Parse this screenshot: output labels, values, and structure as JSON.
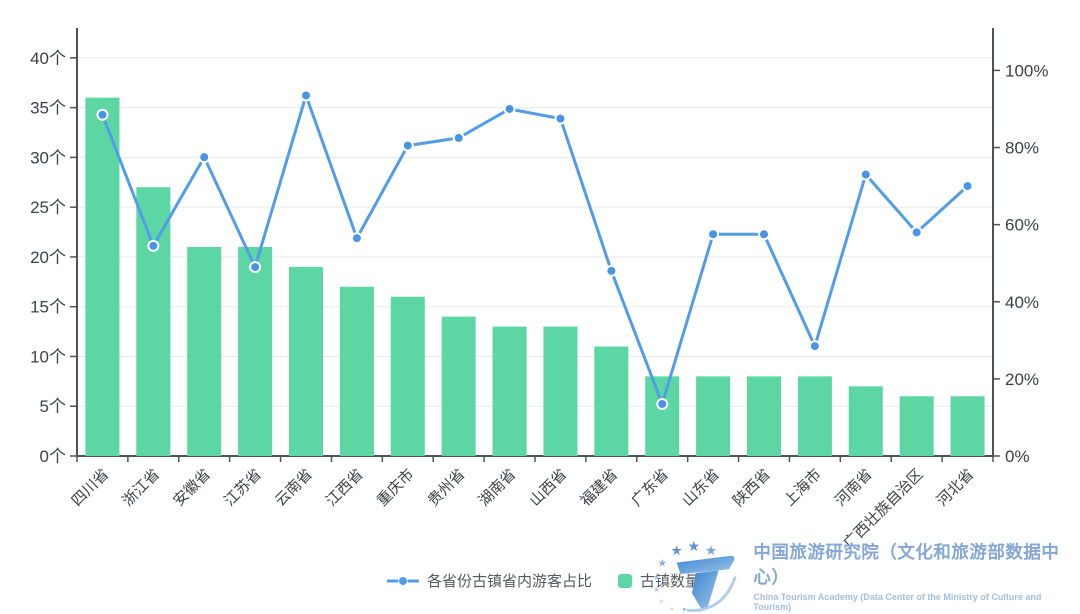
{
  "chart_data": {
    "type": "bar",
    "subtype": "bar-line-combo",
    "title": "",
    "categories": [
      "四川省",
      "浙江省",
      "安徽省",
      "江苏省",
      "云南省",
      "江西省",
      "重庆市",
      "贵州省",
      "湖南省",
      "山西省",
      "福建省",
      "广东省",
      "山东省",
      "陕西省",
      "上海市",
      "河南省",
      "广西壮族自治区",
      "河北省"
    ],
    "series": [
      {
        "name": "古镇数量",
        "type": "bar",
        "axis": "left",
        "unit": "个",
        "values": [
          36,
          27,
          21,
          21,
          19,
          17,
          16,
          14,
          13,
          13,
          11,
          8,
          8,
          8,
          8,
          7,
          6,
          6
        ]
      },
      {
        "name": "各省份古镇省内游客占比",
        "type": "line",
        "axis": "right",
        "unit": "%",
        "values": [
          88.5,
          54.5,
          77.5,
          49,
          93.5,
          56.5,
          80.5,
          82.5,
          90,
          87.5,
          48,
          13.5,
          57.5,
          57.5,
          28.5,
          73,
          58,
          70
        ]
      }
    ],
    "left_axis": {
      "tick_labels": [
        "0个",
        "5个",
        "10个",
        "15个",
        "20个",
        "25个",
        "30个",
        "35个",
        "40个"
      ],
      "tick_values": [
        0,
        5,
        10,
        15,
        20,
        25,
        30,
        35,
        40
      ],
      "min": 0,
      "max": 43
    },
    "right_axis": {
      "tick_labels": [
        "0%",
        "20%",
        "40%",
        "60%",
        "80%",
        "100%"
      ],
      "tick_values": [
        0,
        20,
        40,
        60,
        80,
        100
      ],
      "min": 0,
      "max": 111
    },
    "grid": "horizontal-only",
    "legend_position": "bottom-center",
    "x_label_rotation": 45
  },
  "style": {
    "bar_color": "#5CD6A2",
    "line_color": "#519DE8",
    "dot_fill": "#4894E6",
    "dot_ring": "#ffffff",
    "axis_color": "#4c5459",
    "grid_color": "#e9eaec",
    "axis_label_color": "#3c4145",
    "x_label_color": "#3c4145",
    "legend_text_color": "#55595d",
    "brand_blue_dark": "#3E86CF",
    "brand_blue_light": "#9CC4EC"
  },
  "legend": {
    "items": [
      {
        "label": "各省份古镇省内游客占比",
        "icon": "dashed-line-dot-icon",
        "color": "#519DE8"
      },
      {
        "label": "古镇数量",
        "icon": "green-square-icon",
        "color": "#5CD6A2"
      }
    ]
  },
  "branding": {
    "logo": "china-tourism-academy-logo",
    "title": "中国旅游研究院（文化和旅游部数据中心）",
    "subtitle": "China Tourism Academy (Data Center of the Ministry of Culture and Tourism)"
  }
}
